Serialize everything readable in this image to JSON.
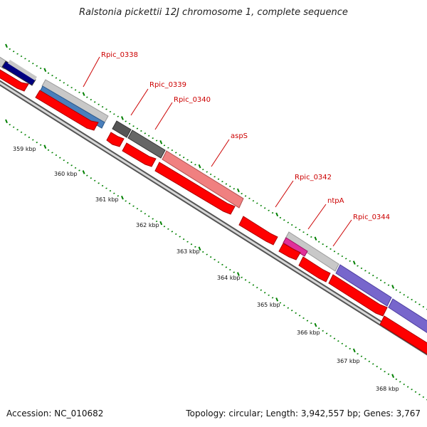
{
  "title": "Ralstonia pickettii 12J chromosome 1, complete sequence",
  "footer": {
    "accession": "Accession: NC_010682",
    "summary": "Topology: circular; Length: 3,942,557 bp; Genes: 3,767"
  },
  "colors": {
    "cds_red": "#ff0000",
    "tick_green": "#008000",
    "label_red": "#cc0000",
    "backbone_gray": "#7f7f7f"
  },
  "gene_labels": [
    "Rpic_0338",
    "Rpic_0339",
    "Rpic_0340",
    "aspS",
    "Rpic_0342",
    "ntpA",
    "Rpic_0344"
  ],
  "kbp_labels": [
    "359 kbp",
    "360 kbp",
    "361 kbp",
    "362 kbp",
    "363 kbp",
    "364 kbp",
    "365 kbp",
    "366 kbp",
    "367 kbp",
    "368 kbp"
  ]
}
